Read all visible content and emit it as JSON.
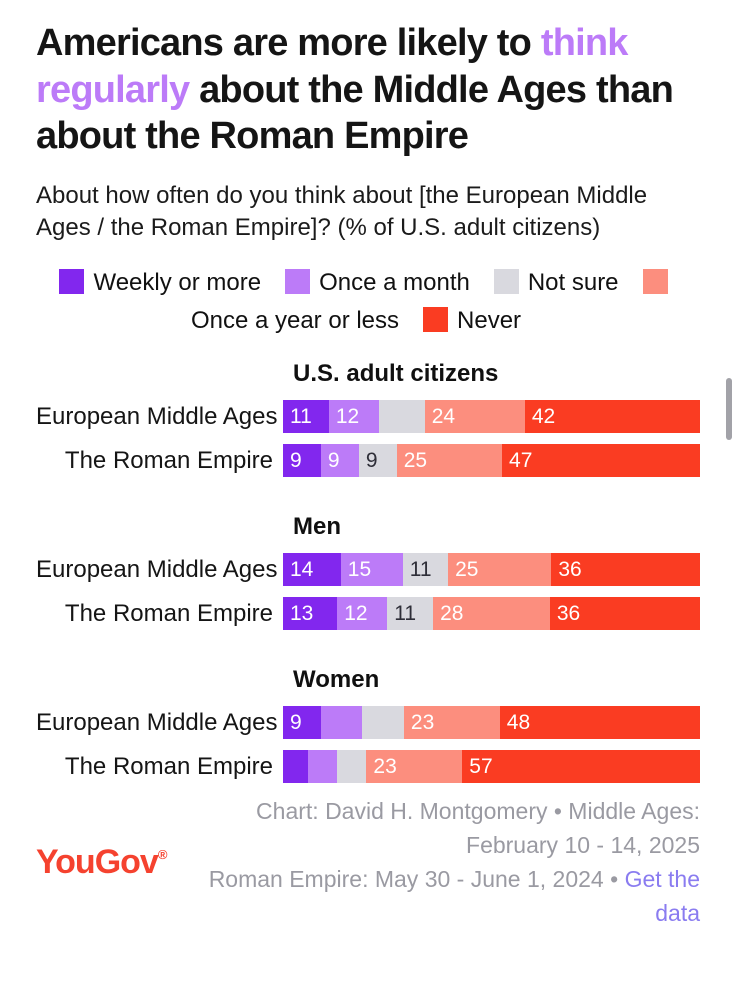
{
  "title": {
    "prefix": "Americans are more likely to ",
    "highlight": "think regularly",
    "suffix": " about the Middle Ages than about the Roman Empire"
  },
  "subtitle": "About how often do you think about [the European Middle Ages / the Roman Empire]? (% of U.S. adult citizens)",
  "colors": {
    "highlight_purple": "#bc7bf8",
    "logo_red": "#f5422f",
    "link_purple": "#8a7cf0",
    "credit_gray": "#9a9aa2"
  },
  "chart_data": {
    "type": "bar",
    "variant": "stacked-horizontal",
    "xlim": [
      0,
      100
    ],
    "legend_position": "top",
    "series": [
      {
        "name": "Weekly or more",
        "color": "#8227ee",
        "text_color": "#ffffff"
      },
      {
        "name": "Once a month",
        "color": "#bc7bf8",
        "text_color": "#ffffff"
      },
      {
        "name": "Not sure",
        "color": "#d9d9df",
        "text_color": "#2e2e38"
      },
      {
        "name": "Once a year or less",
        "color": "#fc8e7e",
        "text_color": "#ffffff"
      },
      {
        "name": "Never",
        "color": "#fa3c22",
        "text_color": "#ffffff"
      }
    ],
    "groups": [
      {
        "title": "U.S. adult citizens",
        "rows": [
          {
            "label": "European Middle Ages",
            "values": [
              11,
              12,
              11,
              24,
              42
            ],
            "value_labels": [
              "11",
              "12",
              "",
              "24",
              "42"
            ]
          },
          {
            "label": "The Roman Empire",
            "values": [
              9,
              9,
              9,
              25,
              47
            ],
            "value_labels": [
              "9",
              "9",
              "9",
              "25",
              "47"
            ]
          }
        ]
      },
      {
        "title": "Men",
        "rows": [
          {
            "label": "European Middle Ages",
            "values": [
              14,
              15,
              11,
              25,
              36
            ],
            "value_labels": [
              "14",
              "15",
              "11",
              "25",
              "36"
            ]
          },
          {
            "label": "The Roman Empire",
            "values": [
              13,
              12,
              11,
              28,
              36
            ],
            "value_labels": [
              "13",
              "12",
              "11",
              "28",
              "36"
            ]
          }
        ]
      },
      {
        "title": "Women",
        "rows": [
          {
            "label": "European Middle Ages",
            "values": [
              9,
              10,
              10,
              23,
              48
            ],
            "value_labels": [
              "9",
              "",
              "",
              "23",
              "48"
            ]
          },
          {
            "label": "The Roman Empire",
            "values": [
              6,
              7,
              7,
              23,
              57
            ],
            "value_labels": [
              "",
              "",
              "",
              "23",
              "57"
            ]
          }
        ]
      }
    ]
  },
  "footer": {
    "logo": "YouGov",
    "logo_mark": "®",
    "credit1": "Chart: David H. Montgomery • Middle Ages: February 10 - 14, 2025",
    "credit2": "Roman Empire: May 30 - June 1, 2024 • ",
    "link_label": "Get the data"
  }
}
